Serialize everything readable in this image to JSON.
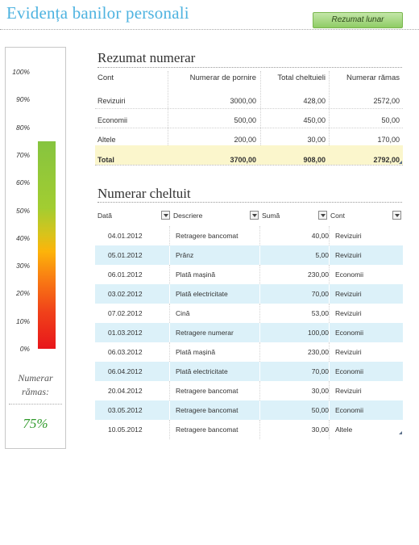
{
  "header": {
    "title": "Evidența banilor personali",
    "summary_button": "Rezumat lunar"
  },
  "gauge": {
    "ticks": [
      "100%",
      "90%",
      "80%",
      "70%",
      "60%",
      "50%",
      "40%",
      "30%",
      "20%",
      "10%",
      "0%"
    ],
    "level_percent": 75,
    "caption": "Numerar rămas:",
    "value": "75%",
    "colors": {
      "bottom": "#e8161b",
      "middle": "#fcb40a",
      "top": "#86c43f",
      "value_text": "#2f9a2a"
    }
  },
  "summary": {
    "title": "Rezumat numerar",
    "columns": [
      "Cont",
      "Numerar de pornire",
      "Total cheltuieli",
      "Numerar rămas"
    ],
    "rows": [
      [
        "Revizuiri",
        "3000,00",
        "428,00",
        "2572,00"
      ],
      [
        "Economii",
        "500,00",
        "450,00",
        "50,00"
      ],
      [
        "Altele",
        "200,00",
        "30,00",
        "170,00"
      ]
    ],
    "total": [
      "Total",
      "3700,00",
      "908,00",
      "2792,00"
    ]
  },
  "expenses": {
    "title": "Numerar cheltuit",
    "columns": [
      "Dată",
      "Descriere",
      "Sumă",
      "Cont"
    ],
    "rows": [
      [
        "04.01.2012",
        "Retragere bancomat",
        "40,00",
        "Revizuiri"
      ],
      [
        "05.01.2012",
        "Prânz",
        "5,00",
        "Revizuiri"
      ],
      [
        "06.01.2012",
        "Plată mașină",
        "230,00",
        "Economii"
      ],
      [
        "03.02.2012",
        "Plată electricitate",
        "70,00",
        "Revizuiri"
      ],
      [
        "07.02.2012",
        "Cină",
        "53,00",
        "Revizuiri"
      ],
      [
        "01.03.2012",
        "Retragere numerar",
        "100,00",
        "Economii"
      ],
      [
        "06.03.2012",
        "Plată mașină",
        "230,00",
        "Revizuiri"
      ],
      [
        "06.04.2012",
        "Plată electricitate",
        "70,00",
        "Economii"
      ],
      [
        "20.04.2012",
        "Retragere bancomat",
        "30,00",
        "Revizuiri"
      ],
      [
        "03.05.2012",
        "Retragere bancomat",
        "50,00",
        "Economii"
      ],
      [
        "10.05.2012",
        "Retragere bancomat",
        "30,00",
        "Altele"
      ]
    ]
  }
}
